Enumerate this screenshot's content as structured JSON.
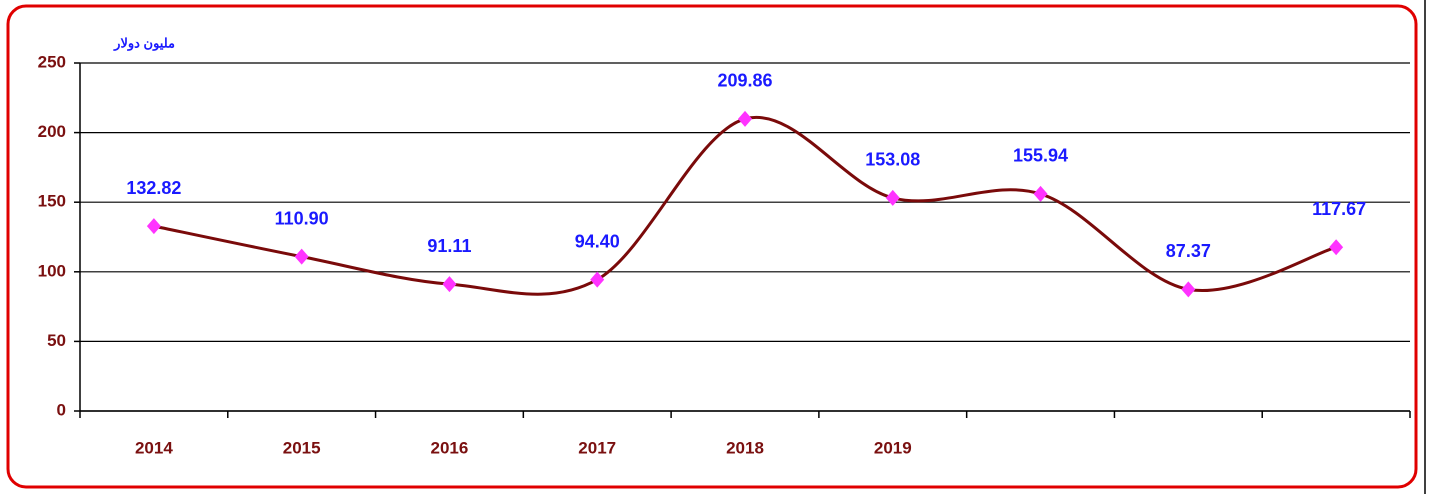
{
  "chart_data": {
    "type": "line",
    "y_label": "مليون دولار",
    "categories": [
      "2014",
      "2015",
      "2016",
      "2017",
      "2018",
      "2019",
      null,
      null,
      null
    ],
    "values": [
      132.82,
      110.9,
      91.11,
      94.4,
      209.86,
      153.08,
      155.94,
      87.37,
      117.67
    ],
    "value_labels": [
      "132.82",
      "110.90",
      "91.11",
      "94.40",
      "209.86",
      "153.08",
      "155.94",
      "87.37",
      "117.67"
    ],
    "color": "#7a0a0a",
    "marker_color": "#ff33ff",
    "ylim": [
      0,
      250
    ],
    "yticks": [
      0,
      50,
      100,
      150,
      200,
      250
    ],
    "grid": true
  }
}
